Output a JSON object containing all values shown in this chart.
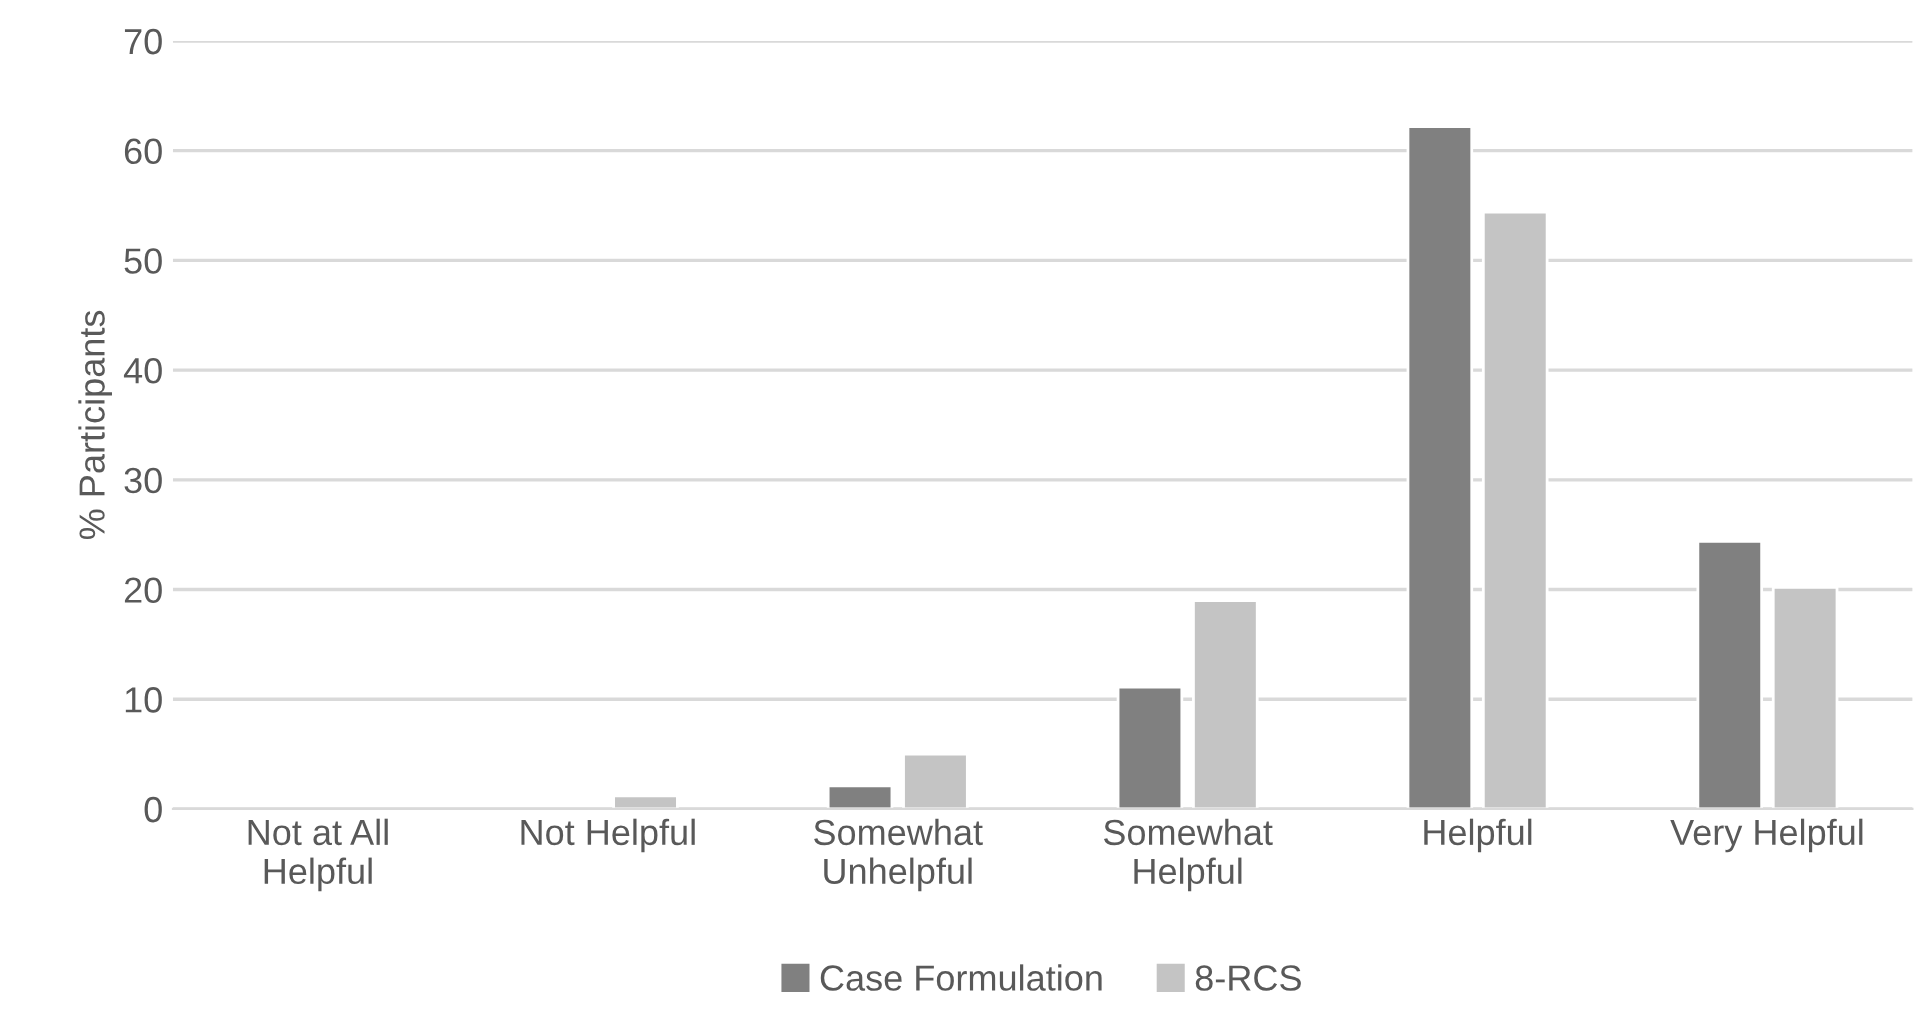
{
  "chart_data": {
    "type": "bar",
    "ylabel": "% Participants",
    "categories": [
      "Not at All\nHelpful",
      "Not Helpful",
      "Somewhat\nUnhelpful",
      "Somewhat\nHelpful",
      "Helpful",
      "Very Helpful"
    ],
    "series": [
      {
        "name": "Case Formulation",
        "color": "#808080",
        "values": [
          0,
          0,
          2.1,
          11.1,
          62.2,
          24.4
        ]
      },
      {
        "name": "8-RCS",
        "color": "#c4c4c4",
        "values": [
          0,
          1.2,
          5.0,
          19.0,
          54.4,
          20.2
        ]
      }
    ],
    "ylim": [
      0,
      70
    ],
    "yticks": [
      0,
      10,
      20,
      30,
      40,
      50,
      60,
      70
    ],
    "grid": "y",
    "legend": "bottom"
  }
}
